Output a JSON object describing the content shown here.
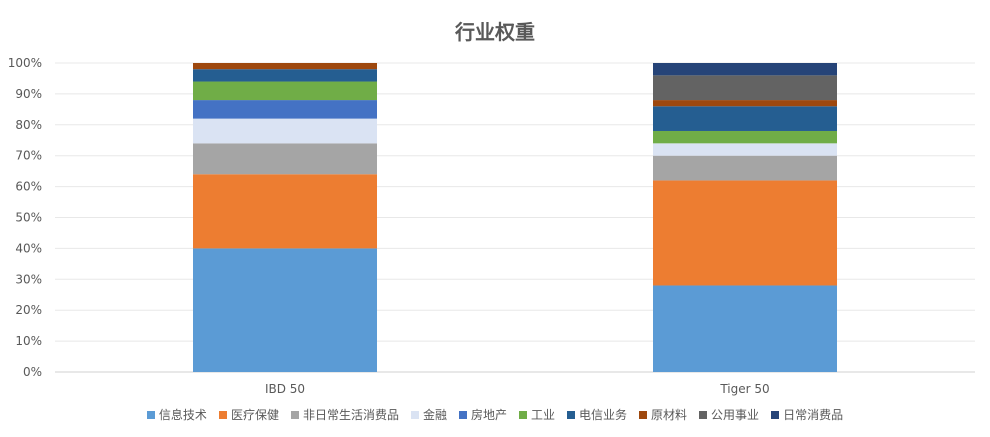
{
  "chart_data": {
    "type": "bar",
    "stacked": true,
    "title": "行业权重",
    "categories": [
      "IBD 50",
      "Tiger 50"
    ],
    "yaxis": {
      "ticks": [
        "0%",
        "10%",
        "20%",
        "30%",
        "40%",
        "50%",
        "60%",
        "70%",
        "80%",
        "90%",
        "100%"
      ],
      "min": 0,
      "max": 100
    },
    "grid": true,
    "legend_position": "bottom",
    "series": [
      {
        "name": "信息技术",
        "color": "#5B9BD5",
        "values": [
          40,
          28
        ]
      },
      {
        "name": "医疗保健",
        "color": "#ED7D31",
        "values": [
          24,
          34
        ]
      },
      {
        "name": "非日常生活消费品",
        "color": "#A5A5A5",
        "values": [
          10,
          8
        ]
      },
      {
        "name": "金融",
        "color": "#DAE3F3",
        "values": [
          8,
          4
        ]
      },
      {
        "name": "房地产",
        "color": "#4472C4",
        "values": [
          6,
          0
        ]
      },
      {
        "name": "工业",
        "color": "#70AD47",
        "values": [
          6,
          4
        ]
      },
      {
        "name": "电信业务",
        "color": "#255E91",
        "values": [
          4,
          8
        ]
      },
      {
        "name": "原材料",
        "color": "#9E480E",
        "values": [
          2,
          2
        ]
      },
      {
        "name": "公用事业",
        "color": "#636363",
        "values": [
          0,
          8
        ]
      },
      {
        "name": "日常消费品",
        "color": "#264478",
        "values": [
          0,
          4
        ]
      }
    ]
  }
}
